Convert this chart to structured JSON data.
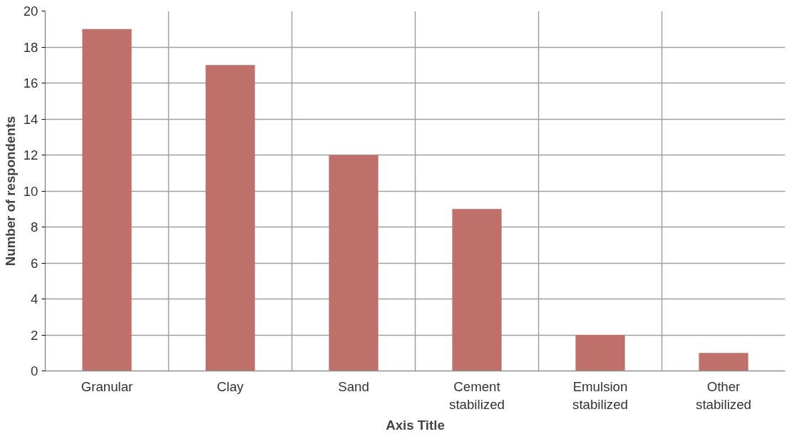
{
  "chart_data": {
    "type": "bar",
    "xlabel": "Axis Title",
    "ylabel": "Number of respondents",
    "categories": [
      "Granular",
      "Clay",
      "Sand",
      "Cement stabilized",
      "Emulsion stabilized",
      "Other stabilized"
    ],
    "values": [
      19,
      17,
      12,
      9,
      2,
      1
    ],
    "color": "#c0706a",
    "ylim": [
      0,
      20
    ],
    "yticks": [
      0,
      2,
      4,
      6,
      8,
      10,
      12,
      14,
      16,
      18,
      20
    ],
    "grid": true
  }
}
